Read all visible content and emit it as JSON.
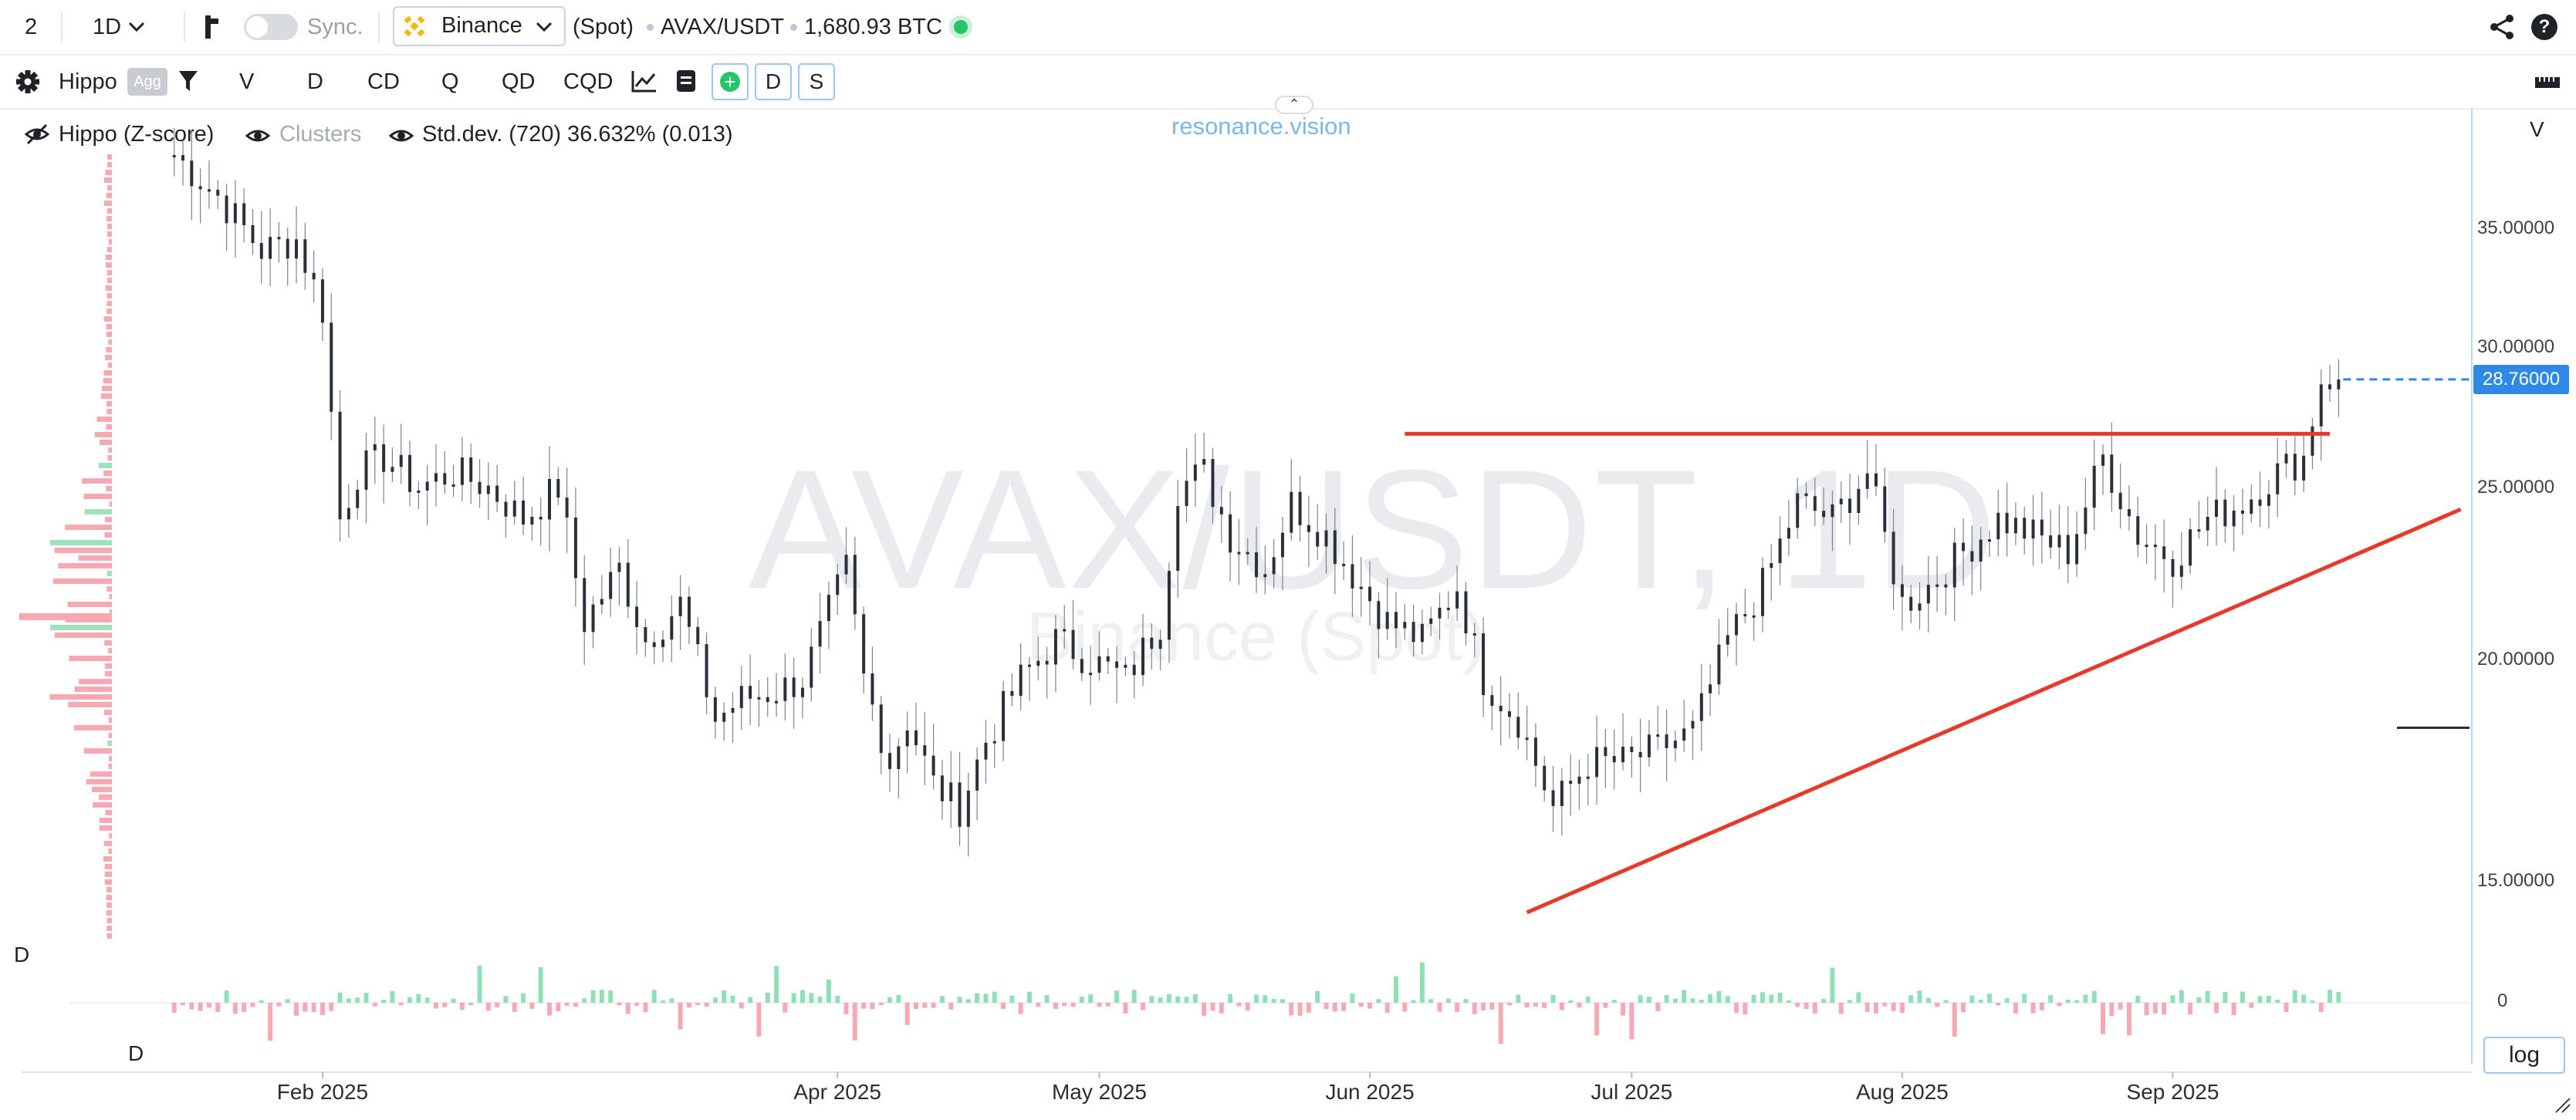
{
  "topbar": {
    "layout_id": "2",
    "interval": "1D",
    "sync_label": "Sync.",
    "exchange": "Binance",
    "market": "(Spot)",
    "pair": "AVAX/USDT",
    "volume": "1,680.93 BTC",
    "status_color": "#27c46a"
  },
  "toolbar": {
    "indicator_name": "Hippo",
    "agg_label": "Agg",
    "modes": [
      "V",
      "D",
      "CD",
      "Q",
      "QD",
      "CQD"
    ],
    "box_d": "D",
    "box_s": "S"
  },
  "legend": {
    "hippo": "Hippo (Z-score)",
    "clusters": "Clusters",
    "stddev": "Std.dev. (720) 36.632% (0.013)"
  },
  "watermark": {
    "pair_interval": "AVAX/USDT, 1D",
    "exchange": "Binance (Spot)"
  },
  "brand": "resonance.vision",
  "right_panel": {
    "v_label": "V",
    "log_label": "log"
  },
  "pane_labels": {
    "profile_d": "D",
    "delta_d": "D"
  },
  "chart_data": {
    "type": "candlestick",
    "pair": "AVAX/USDT",
    "interval": "1D",
    "y_scale": "log",
    "ylim": [
      13.6,
      40.5
    ],
    "y_ticks": [
      "35.00000",
      "30.00000",
      "25.00000",
      "20.00000",
      "15.00000"
    ],
    "y_tick_values": [
      35,
      30,
      25,
      20,
      15
    ],
    "x_ticks": [
      "Feb 2025",
      "Apr 2025",
      "May 2025",
      "Jun 2025",
      "Jul 2025",
      "Aug 2025",
      "Sep 2025"
    ],
    "x_tick_dates": [
      "2025-02-01",
      "2025-04-01",
      "2025-05-01",
      "2025-06-01",
      "2025-07-01",
      "2025-08-01",
      "2025-09-01"
    ],
    "x_range_dates": [
      "2025-01-03",
      "2025-10-05"
    ],
    "last_price": "28.76000",
    "last_price_value": 28.76,
    "delta_zero_label": "0",
    "closes": [
      {
        "d": "2025-01-15",
        "c": 38.5
      },
      {
        "d": "2025-01-20",
        "c": 36.5
      },
      {
        "d": "2025-01-25",
        "c": 34.0
      },
      {
        "d": "2025-01-29",
        "c": 34.5
      },
      {
        "d": "2025-02-01",
        "c": 31.5
      },
      {
        "d": "2025-02-03",
        "c": 24.0
      },
      {
        "d": "2025-02-05",
        "c": 25.5
      },
      {
        "d": "2025-02-08",
        "c": 26.0
      },
      {
        "d": "2025-02-12",
        "c": 25.0
      },
      {
        "d": "2025-02-16",
        "c": 25.5
      },
      {
        "d": "2025-02-20",
        "c": 25.0
      },
      {
        "d": "2025-02-24",
        "c": 24.0
      },
      {
        "d": "2025-02-28",
        "c": 25.0
      },
      {
        "d": "2025-03-03",
        "c": 21.0
      },
      {
        "d": "2025-03-07",
        "c": 22.5
      },
      {
        "d": "2025-03-10",
        "c": 20.5
      },
      {
        "d": "2025-03-14",
        "c": 21.5
      },
      {
        "d": "2025-03-18",
        "c": 18.5
      },
      {
        "d": "2025-03-21",
        "c": 19.0
      },
      {
        "d": "2025-03-25",
        "c": 19.2
      },
      {
        "d": "2025-03-28",
        "c": 19.5
      },
      {
        "d": "2025-04-02",
        "c": 22.5
      },
      {
        "d": "2025-04-04",
        "c": 19.5
      },
      {
        "d": "2025-04-07",
        "c": 17.5
      },
      {
        "d": "2025-04-09",
        "c": 18.5
      },
      {
        "d": "2025-04-12",
        "c": 17.0
      },
      {
        "d": "2025-04-15",
        "c": 16.5
      },
      {
        "d": "2025-04-18",
        "c": 18.0
      },
      {
        "d": "2025-04-22",
        "c": 19.5
      },
      {
        "d": "2025-04-26",
        "c": 20.5
      },
      {
        "d": "2025-04-30",
        "c": 20.0
      },
      {
        "d": "2025-05-04",
        "c": 19.5
      },
      {
        "d": "2025-05-08",
        "c": 21.0
      },
      {
        "d": "2025-05-10",
        "c": 25.0
      },
      {
        "d": "2025-05-13",
        "c": 25.5
      },
      {
        "d": "2025-05-16",
        "c": 23.5
      },
      {
        "d": "2025-05-20",
        "c": 22.5
      },
      {
        "d": "2025-05-23",
        "c": 24.5
      },
      {
        "d": "2025-05-27",
        "c": 23.5
      },
      {
        "d": "2025-05-31",
        "c": 22.0
      },
      {
        "d": "2025-06-03",
        "c": 21.0
      },
      {
        "d": "2025-06-07",
        "c": 20.5
      },
      {
        "d": "2025-06-11",
        "c": 22.0
      },
      {
        "d": "2025-06-14",
        "c": 19.5
      },
      {
        "d": "2025-06-18",
        "c": 18.5
      },
      {
        "d": "2025-06-22",
        "c": 16.5
      },
      {
        "d": "2025-06-26",
        "c": 17.5
      },
      {
        "d": "2025-06-30",
        "c": 17.5
      },
      {
        "d": "2025-07-04",
        "c": 17.8
      },
      {
        "d": "2025-07-08",
        "c": 18.2
      },
      {
        "d": "2025-07-12",
        "c": 20.5
      },
      {
        "d": "2025-07-16",
        "c": 22.0
      },
      {
        "d": "2025-07-20",
        "c": 24.5
      },
      {
        "d": "2025-07-24",
        "c": 24.0
      },
      {
        "d": "2025-07-28",
        "c": 25.5
      },
      {
        "d": "2025-08-01",
        "c": 21.5
      },
      {
        "d": "2025-08-04",
        "c": 22.0
      },
      {
        "d": "2025-08-08",
        "c": 23.0
      },
      {
        "d": "2025-08-12",
        "c": 24.0
      },
      {
        "d": "2025-08-16",
        "c": 23.5
      },
      {
        "d": "2025-08-20",
        "c": 23.0
      },
      {
        "d": "2025-08-24",
        "c": 26.0
      },
      {
        "d": "2025-08-28",
        "c": 23.5
      },
      {
        "d": "2025-09-01",
        "c": 22.8
      },
      {
        "d": "2025-09-05",
        "c": 24.0
      },
      {
        "d": "2025-09-09",
        "c": 24.5
      },
      {
        "d": "2025-09-13",
        "c": 25.5
      },
      {
        "d": "2025-09-16",
        "c": 26.0
      },
      {
        "d": "2025-09-18",
        "c": 28.8
      },
      {
        "d": "2025-09-20",
        "c": 28.76
      }
    ],
    "trendlines": [
      {
        "color": "#e83a2a",
        "from": {
          "d": "2025-06-05",
          "p": 26.8
        },
        "to": {
          "d": "2025-09-19",
          "p": 26.8
        }
      },
      {
        "color": "#e83a2a",
        "from": {
          "d": "2025-06-19",
          "p": 14.4
        },
        "to": {
          "d": "2025-10-04",
          "p": 24.3
        }
      }
    ],
    "price_level_marks": [
      {
        "p": 18.3,
        "color": "#2a2f35"
      }
    ]
  }
}
